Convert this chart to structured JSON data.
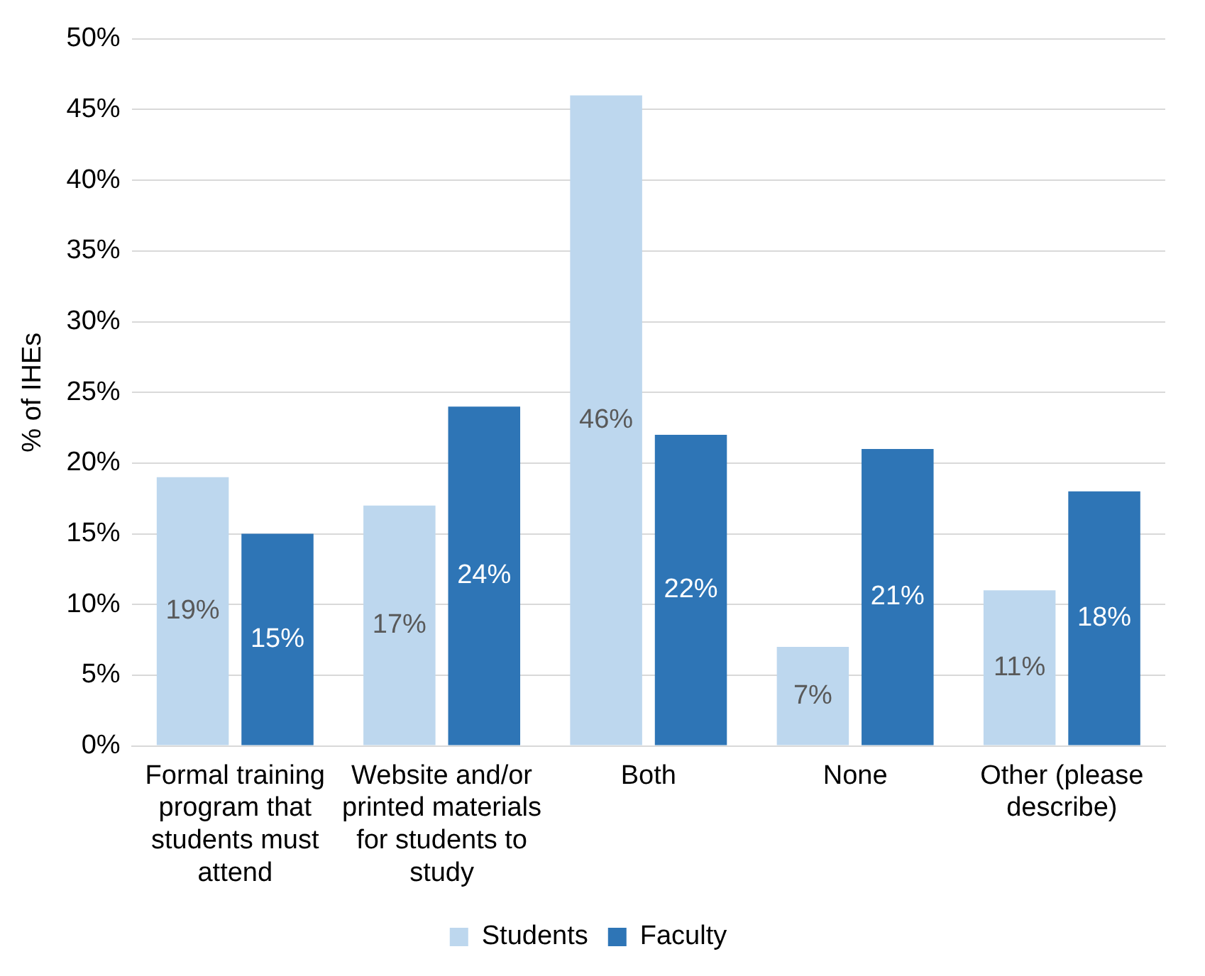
{
  "chart_data": {
    "type": "bar",
    "ylabel": "% of IHEs",
    "categories": [
      "Formal training program that students must attend",
      "Website and/or printed materials for students to study",
      "Both",
      "None",
      "Other (please describe)"
    ],
    "series": [
      {
        "name": "Students",
        "color": "#bdd7ee",
        "values": [
          19,
          17,
          46,
          7,
          11
        ],
        "value_labels": [
          "19%",
          "17%",
          "46%",
          "7%",
          "11%"
        ]
      },
      {
        "name": "Faculty",
        "color": "#2e75b6",
        "values": [
          15,
          24,
          22,
          21,
          18
        ],
        "value_labels": [
          "15%",
          "24%",
          "22%",
          "21%",
          "18%"
        ]
      }
    ],
    "ylim": [
      0,
      50
    ],
    "yticks": [
      {
        "value": 0,
        "label": "0%"
      },
      {
        "value": 5,
        "label": "5%"
      },
      {
        "value": 10,
        "label": "10%"
      },
      {
        "value": 15,
        "label": "15%"
      },
      {
        "value": 20,
        "label": "20%"
      },
      {
        "value": 25,
        "label": "25%"
      },
      {
        "value": 30,
        "label": "30%"
      },
      {
        "value": 35,
        "label": "35%"
      },
      {
        "value": 40,
        "label": "40%"
      },
      {
        "value": 45,
        "label": "45%"
      },
      {
        "value": 50,
        "label": "50%"
      }
    ],
    "grid": "y",
    "legend": "bottom"
  }
}
